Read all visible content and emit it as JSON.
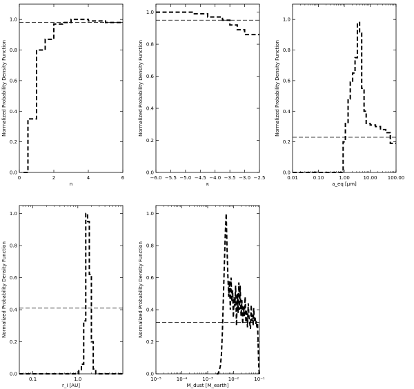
{
  "chart_data": [
    {
      "type": "line",
      "xlabel": "n",
      "ylabel": "Normalized Probability Density Function",
      "xscale": "linear",
      "xlim": [
        0,
        6
      ],
      "ylim": [
        0.0,
        1.1
      ],
      "xticks": [
        0,
        2,
        4,
        6
      ],
      "xtick_labels": [
        "0",
        "2",
        "4",
        "6"
      ],
      "yticks": [
        0.0,
        0.2,
        0.4,
        0.6,
        0.8,
        1.0
      ],
      "ytick_labels": [
        "0.0",
        "0.2",
        "0.4",
        "0.6",
        "0.8",
        "1.0"
      ],
      "reference_line": 0.98,
      "series": [
        {
          "x": [
            0.25,
            0.5,
            0.5,
            1.0,
            1.0,
            1.5,
            1.5,
            2.0,
            2.0,
            2.5,
            2.5,
            3.0,
            3.0,
            4.0,
            4.0,
            5.0,
            5.0,
            6.0
          ],
          "values": [
            0.0,
            0.0,
            0.35,
            0.35,
            0.8,
            0.8,
            0.87,
            0.87,
            0.97,
            0.97,
            0.98,
            0.98,
            1.0,
            1.0,
            0.99,
            0.99,
            0.98,
            0.98
          ]
        }
      ]
    },
    {
      "type": "line",
      "xlabel": "κ",
      "ylabel": "Normalized Probability Density Function",
      "xscale": "linear",
      "xlim": [
        -6.0,
        -2.5
      ],
      "ylim": [
        0.0,
        1.05
      ],
      "xticks": [
        -6.0,
        -5.5,
        -5.0,
        -4.5,
        -4.0,
        -3.5,
        -3.0,
        -2.5
      ],
      "xtick_labels": [
        "−6.0",
        "−5.5",
        "−5.0",
        "−4.5",
        "−4.0",
        "−3.5",
        "−3.0",
        "−2.5"
      ],
      "yticks": [
        0.0,
        0.2,
        0.4,
        0.6,
        0.8,
        1.0
      ],
      "ytick_labels": [
        "0.0",
        "0.2",
        "0.4",
        "0.6",
        "0.8",
        "1.0"
      ],
      "reference_line": 0.95,
      "series": [
        {
          "x": [
            -6.0,
            -5.25,
            -5.25,
            -4.75,
            -4.75,
            -4.25,
            -4.25,
            -3.75,
            -3.75,
            -3.5,
            -3.5,
            -3.25,
            -3.25,
            -3.0,
            -3.0,
            -2.5
          ],
          "values": [
            1.0,
            1.0,
            1.0,
            1.0,
            0.99,
            0.99,
            0.97,
            0.97,
            0.95,
            0.95,
            0.92,
            0.92,
            0.89,
            0.89,
            0.86,
            0.86
          ]
        }
      ]
    },
    {
      "type": "line",
      "xlabel": "a_eq [μm]",
      "ylabel": "Normalized Probability Density Function",
      "xscale": "log",
      "xlim": [
        0.01,
        100.0
      ],
      "ylim": [
        0.0,
        1.1
      ],
      "xticks": [
        0.01,
        0.1,
        1.0,
        10.0,
        100.0
      ],
      "xtick_labels": [
        "0.01",
        "0.10",
        "1.00",
        "10.00",
        "100.00"
      ],
      "yticks": [
        0.0,
        0.2,
        0.4,
        0.6,
        0.8,
        1.0
      ],
      "ytick_labels": [
        "0.0",
        "0.2",
        "0.4",
        "0.6",
        "0.8",
        "1.0"
      ],
      "reference_line": 0.23,
      "series": [
        {
          "x": [
            0.01,
            0.9,
            0.9,
            1.1,
            1.1,
            1.4,
            1.4,
            1.7,
            1.7,
            2.1,
            2.1,
            2.6,
            2.6,
            3.2,
            3.2,
            3.9,
            3.9,
            4.7,
            4.7,
            5.8,
            5.8,
            7.0,
            7.0,
            10,
            10,
            16,
            16,
            25,
            25,
            40,
            40,
            60,
            60,
            100
          ],
          "values": [
            0.0,
            0.0,
            0.2,
            0.2,
            0.32,
            0.32,
            0.48,
            0.48,
            0.59,
            0.59,
            0.65,
            0.65,
            0.75,
            0.75,
            0.98,
            0.98,
            0.91,
            0.91,
            0.55,
            0.55,
            0.4,
            0.4,
            0.32,
            0.32,
            0.31,
            0.31,
            0.3,
            0.3,
            0.28,
            0.28,
            0.26,
            0.26,
            0.19,
            0.19
          ]
        }
      ]
    },
    {
      "type": "line",
      "xlabel": "r_i [AU]",
      "ylabel": "Normalized Probability Density Function",
      "xscale": "log",
      "xlim": [
        0.05,
        10
      ],
      "ylim": [
        0.0,
        1.05
      ],
      "xticks": [
        0.1,
        1.0
      ],
      "xtick_labels": [
        "0.1",
        "1.0"
      ],
      "yticks": [
        0.0,
        0.2,
        0.4,
        0.6,
        0.8,
        1.0
      ],
      "ytick_labels": [
        "0.0",
        "0.2",
        "0.4",
        "0.6",
        "0.8",
        "1.0"
      ],
      "reference_line": 0.41,
      "series": [
        {
          "x": [
            0.05,
            1.05,
            1.05,
            1.2,
            1.2,
            1.35,
            1.35,
            1.5,
            1.5,
            1.65,
            1.65,
            1.8,
            1.8,
            2.0,
            2.0,
            2.2,
            2.2,
            2.5,
            2.5,
            10
          ],
          "values": [
            0.0,
            0.0,
            0.02,
            0.02,
            0.06,
            0.06,
            0.33,
            0.33,
            1.0,
            1.0,
            0.95,
            0.95,
            0.62,
            0.62,
            0.2,
            0.2,
            0.03,
            0.03,
            0.0,
            0.0
          ]
        }
      ]
    },
    {
      "type": "line",
      "xlabel": "M_dust [M_earth]",
      "ylabel": "Normalized Probability Density Function",
      "xscale": "log",
      "xlim": [
        1e-05,
        0.1
      ],
      "ylim": [
        0.0,
        1.05
      ],
      "xticks": [
        1e-05,
        0.0001,
        0.001,
        0.01,
        0.1
      ],
      "xtick_labels": [
        "10⁻⁵",
        "10⁻⁴",
        "10⁻³",
        "10⁻²",
        "10⁻¹"
      ],
      "yticks": [
        0.0,
        0.2,
        0.4,
        0.6,
        0.8,
        1.0
      ],
      "ytick_labels": [
        "0.0",
        "0.2",
        "0.4",
        "0.6",
        "0.8",
        "1.0"
      ],
      "reference_line": 0.32,
      "series": [
        {
          "x": [
            0.0022,
            0.0025,
            0.0028,
            0.0031,
            0.0034,
            0.0037,
            0.004,
            0.0044,
            0.0048,
            0.0052,
            0.0056,
            0.006,
            0.0065,
            0.007,
            0.0075,
            0.008,
            0.0086,
            0.0092,
            0.0098,
            0.0105,
            0.0112,
            0.012,
            0.013,
            0.014,
            0.015,
            0.016,
            0.017,
            0.018,
            0.0195,
            0.021,
            0.0225,
            0.024,
            0.026,
            0.028,
            0.03,
            0.032,
            0.0345,
            0.037,
            0.0395,
            0.042,
            0.045,
            0.048,
            0.051,
            0.054,
            0.057,
            0.06,
            0.064,
            0.068,
            0.072,
            0.076,
            0.08,
            0.085,
            0.09,
            0.095,
            0.1
          ],
          "values": [
            0.0,
            0.0,
            0.02,
            0.05,
            0.12,
            0.26,
            0.45,
            0.68,
            0.88,
            1.0,
            0.78,
            0.62,
            0.48,
            0.58,
            0.4,
            0.6,
            0.45,
            0.52,
            0.35,
            0.48,
            0.42,
            0.55,
            0.3,
            0.5,
            0.38,
            0.57,
            0.4,
            0.55,
            0.36,
            0.46,
            0.31,
            0.42,
            0.36,
            0.48,
            0.32,
            0.4,
            0.29,
            0.44,
            0.35,
            0.32,
            0.28,
            0.43,
            0.33,
            0.37,
            0.3,
            0.41,
            0.33,
            0.35,
            0.31,
            0.33,
            0.29,
            0.31,
            0.15,
            0.03,
            0.0
          ]
        }
      ]
    }
  ]
}
